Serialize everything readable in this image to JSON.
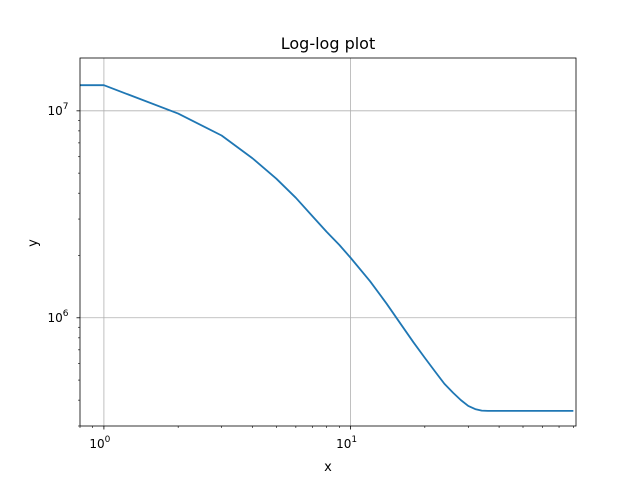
{
  "chart_data": {
    "type": "line",
    "title": "Log-log plot",
    "xlabel": "x",
    "ylabel": "y",
    "xscale": "log",
    "yscale": "log",
    "xlim": [
      0.8,
      82
    ],
    "ylim": [
      300000,
      18000000
    ],
    "grid": true,
    "x_major_ticks": [
      {
        "value": 1,
        "base": "10",
        "exp": "0"
      },
      {
        "value": 10,
        "base": "10",
        "exp": "1"
      }
    ],
    "y_major_ticks": [
      {
        "value": 1000000,
        "base": "10",
        "exp": "6"
      },
      {
        "value": 10000000,
        "base": "10",
        "exp": "7"
      }
    ],
    "series": [
      {
        "color": "#1f77b4",
        "x": [
          0,
          1,
          2,
          3,
          4,
          5,
          6,
          7,
          8,
          9,
          10,
          12,
          14,
          16,
          18,
          20,
          22,
          24,
          26,
          28,
          30,
          32,
          34,
          36,
          38,
          40,
          45,
          50,
          55,
          60,
          65,
          70,
          75,
          80
        ],
        "y": [
          13300000,
          13300000,
          9700000,
          7600000,
          5900000,
          4700000,
          3800000,
          3100000,
          2600000,
          2250000,
          1950000,
          1500000,
          1170000,
          930000,
          760000,
          640000,
          550000,
          480000,
          435000,
          400000,
          375000,
          362000,
          356000,
          355000,
          355000,
          355000,
          355000,
          355000,
          355000,
          355000,
          355000,
          355000,
          355000,
          355000
        ]
      }
    ]
  }
}
